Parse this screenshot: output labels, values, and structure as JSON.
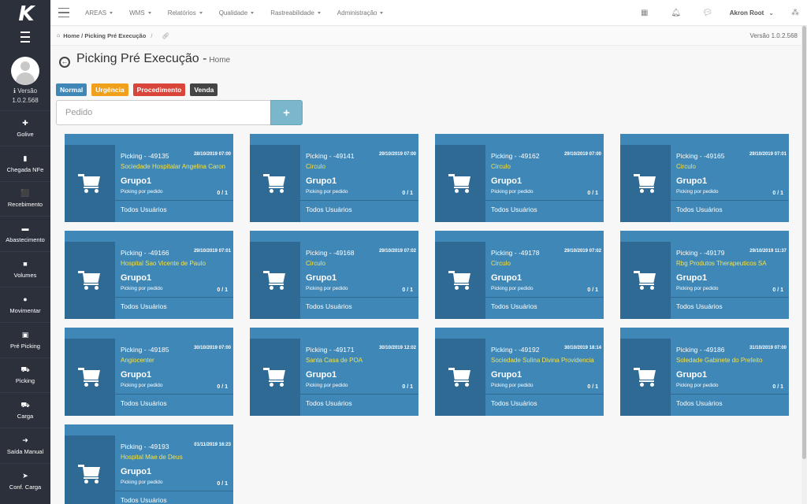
{
  "sidebar": {
    "logo": "K",
    "version_label": "Versão",
    "version_value": "1.0.2.568",
    "items": [
      {
        "label": "Golive",
        "icon": "✚"
      },
      {
        "label": "Chegada NFe",
        "icon": "▮"
      },
      {
        "label": "Recebimento",
        "icon": "⬛"
      },
      {
        "label": "Abastecimento",
        "icon": "▬"
      },
      {
        "label": "Volumes",
        "icon": "■"
      },
      {
        "label": "Movimentar",
        "icon": "●"
      },
      {
        "label": "Pré Picking",
        "icon": "▣"
      },
      {
        "label": "Picking",
        "icon": "⛟"
      },
      {
        "label": "Carga",
        "icon": "⛟"
      },
      {
        "label": "Saída Manual",
        "icon": "➜"
      },
      {
        "label": "Conf. Carga",
        "icon": "➤"
      }
    ]
  },
  "topbar": {
    "menus": [
      "AREAS",
      "WMS",
      "Relatórios",
      "Qualidade",
      "Rastreabilidade",
      "Administração"
    ],
    "user": "Akron Root"
  },
  "breadcrumb": {
    "home": "Home",
    "current": "Picking Pré Execução",
    "version": "Versão 1.0.2.568"
  },
  "page": {
    "title": "Picking Pré Execução -",
    "subtitle": "Home"
  },
  "legend": [
    {
      "label": "Normal",
      "color": "#3f87b7"
    },
    {
      "label": "Urgência",
      "color": "#f0a01b"
    },
    {
      "label": "Procedimento",
      "color": "#d9453a"
    },
    {
      "label": "Venda",
      "color": "#444444"
    }
  ],
  "search": {
    "placeholder": "Pedido",
    "add_label": "+"
  },
  "cards": [
    {
      "title": "Picking - -49135",
      "date": "28/10/2019 07:00",
      "client": "Sociedade Hospitalar Angelina Caron",
      "group": "Grupo1",
      "type": "Picking por pedido",
      "count": "0 / 1",
      "users": "Todos Usuários"
    },
    {
      "title": "Picking - -49141",
      "date": "29/10/2019 07:00",
      "client": "Circulo",
      "group": "Grupo1",
      "type": "Picking por pedido",
      "count": "0 / 1",
      "users": "Todos Usuários"
    },
    {
      "title": "Picking - -49162",
      "date": "29/10/2019 07:00",
      "client": "Circulo",
      "group": "Grupo1",
      "type": "Picking por pedido",
      "count": "0 / 1",
      "users": "Todos Usuários"
    },
    {
      "title": "Picking - -49165",
      "date": "29/10/2019 07:01",
      "client": "Circulo",
      "group": "Grupo1",
      "type": "Picking por pedido",
      "count": "0 / 1",
      "users": "Todos Usuários"
    },
    {
      "title": "Picking - -49166",
      "date": "29/10/2019 07:01",
      "client": "Hospital Sao Vicente de Paulo",
      "group": "Grupo1",
      "type": "Picking por pedido",
      "count": "0 / 1",
      "users": "Todos Usuários"
    },
    {
      "title": "Picking - -49168",
      "date": "29/10/2019 07:02",
      "client": "Circulo",
      "group": "Grupo1",
      "type": "Picking por pedido",
      "count": "0 / 1",
      "users": "Todos Usuários"
    },
    {
      "title": "Picking - -49178",
      "date": "29/10/2019 07:02",
      "client": "Circulo",
      "group": "Grupo1",
      "type": "Picking por pedido",
      "count": "0 / 1",
      "users": "Todos Usuários"
    },
    {
      "title": "Picking - -49179",
      "date": "29/10/2019 11:37",
      "client": "Rbg Produtos Therapeuticos SA",
      "group": "Grupo1",
      "type": "Picking por pedido",
      "count": "0 / 1",
      "users": "Todos Usuários"
    },
    {
      "title": "Picking - -49185",
      "date": "30/10/2019 07:00",
      "client": "Angiocenter",
      "group": "Grupo1",
      "type": "Picking por pedido",
      "count": "0 / 1",
      "users": "Todos Usuários"
    },
    {
      "title": "Picking - -49171",
      "date": "30/10/2019 12:02",
      "client": "Santa Casa de POA",
      "group": "Grupo1",
      "type": "Picking por pedido",
      "count": "0 / 1",
      "users": "Todos Usuários"
    },
    {
      "title": "Picking - -49192",
      "date": "30/10/2019 18:14",
      "client": "Sociedade Sulina Divina Providencia",
      "group": "Grupo1",
      "type": "Picking por pedido",
      "count": "0 / 1",
      "users": "Todos Usuários"
    },
    {
      "title": "Picking - -49186",
      "date": "31/10/2019 07:00",
      "client": "Soledade Gabinete do Prefeito",
      "group": "Grupo1",
      "type": "Picking por pedido",
      "count": "0 / 1",
      "users": "Todos Usuários"
    },
    {
      "title": "Picking - -49193",
      "date": "01/11/2019 16:23",
      "client": "Hospital Mae de Deus",
      "group": "Grupo1",
      "type": "Picking por pedido",
      "count": "0 / 1",
      "users": "Todos Usuários"
    }
  ]
}
